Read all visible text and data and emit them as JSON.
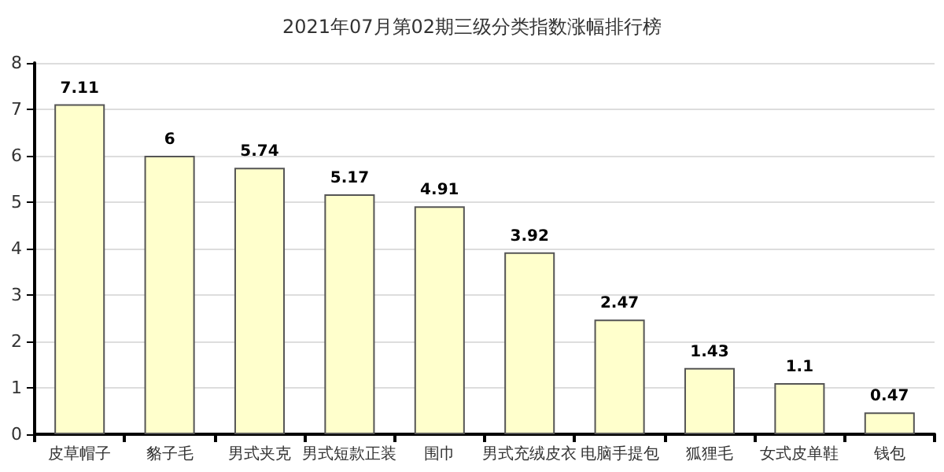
{
  "chart_data": {
    "type": "bar",
    "title": "2021年07月第02期三级分类指数涨幅排行榜",
    "categories": [
      "皮草帽子",
      "貉子毛",
      "男式夹克",
      "男式短款正装",
      "围巾",
      "男式充绒皮衣",
      "电脑手提包",
      "狐狸毛",
      "女式皮单鞋",
      "钱包"
    ],
    "values": [
      7.11,
      6,
      5.74,
      5.17,
      4.91,
      3.92,
      2.47,
      1.43,
      1.1,
      0.47
    ],
    "color": "#ffffcc",
    "ylim": [
      0,
      8
    ],
    "yticks": [
      0,
      1,
      2,
      3,
      4,
      5,
      6,
      7,
      8
    ],
    "grid": "y",
    "data_labels": true
  }
}
